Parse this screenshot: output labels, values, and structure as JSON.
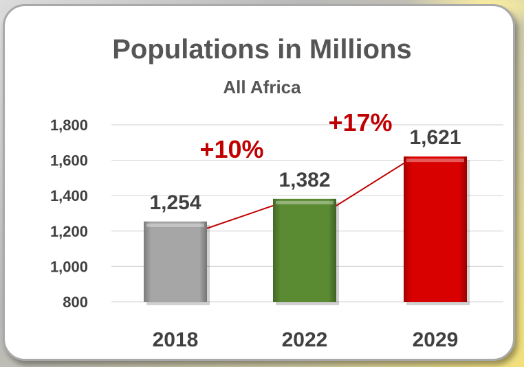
{
  "chart_data": {
    "type": "bar",
    "title": "Populations in Millions",
    "subtitle": "All Africa",
    "categories": [
      "2018",
      "2022",
      "2029"
    ],
    "values": [
      1254,
      1382,
      1621
    ],
    "value_labels": [
      "1,254",
      "1,382",
      "1,621"
    ],
    "bar_colors": [
      "#a6a6a6",
      "#5a8a32",
      "#d90000"
    ],
    "growth_labels": [
      {
        "from": "2018",
        "to": "2022",
        "text": "+10%"
      },
      {
        "from": "2022",
        "to": "2029",
        "text": "+17%"
      }
    ],
    "growth_color": "#c00000",
    "ylim": [
      800,
      1800
    ],
    "yticks": [
      800,
      1000,
      1200,
      1400,
      1600,
      1800
    ],
    "ytick_labels": [
      "800",
      "1,000",
      "1,200",
      "1,400",
      "1,600",
      "1,800"
    ],
    "grid": true,
    "xlabel": "",
    "ylabel": ""
  }
}
